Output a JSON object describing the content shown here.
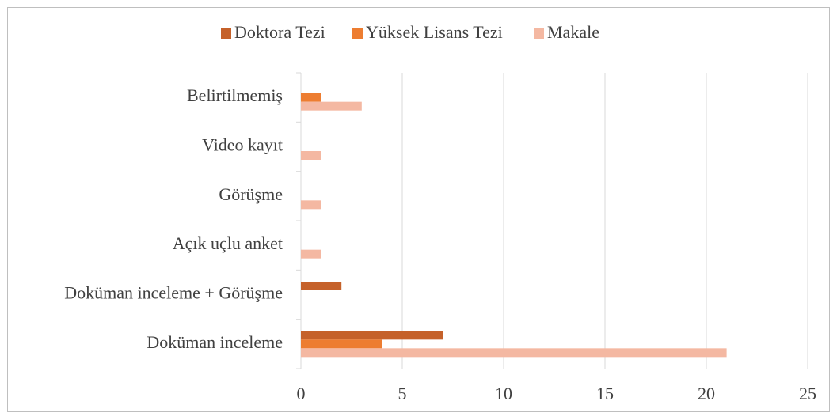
{
  "chart_data": {
    "type": "hbar",
    "categories": [
      "Doküman inceleme",
      "Doküman inceleme + Görüşme",
      "Açık uçlu anket",
      "Görüşme",
      "Video kayıt",
      "Belirtilmemiş"
    ],
    "series": [
      {
        "name": "Doktora Tezi",
        "color": "#c5612a",
        "values": [
          7,
          2,
          0,
          0,
          0,
          0
        ]
      },
      {
        "name": "Yüksek Lisans Tezi",
        "color": "#ed7d31",
        "values": [
          4,
          0,
          0,
          0,
          0,
          1
        ]
      },
      {
        "name": "Makale",
        "color": "#f4b8a2",
        "values": [
          21,
          0,
          1,
          1,
          1,
          3
        ]
      }
    ],
    "xlim": [
      0,
      25
    ],
    "xticks": [
      0,
      5,
      10,
      15,
      20,
      25
    ],
    "grid": true,
    "legend": "top"
  }
}
